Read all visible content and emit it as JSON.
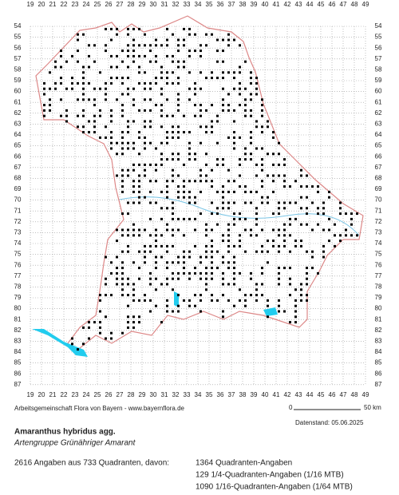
{
  "map": {
    "columns": [
      19,
      20,
      21,
      22,
      23,
      24,
      25,
      26,
      27,
      28,
      29,
      30,
      31,
      32,
      33,
      34,
      35,
      36,
      37,
      38,
      39,
      40,
      41,
      42,
      43,
      44,
      45,
      46,
      47,
      48,
      49
    ],
    "rows": [
      54,
      55,
      56,
      57,
      58,
      59,
      60,
      61,
      62,
      63,
      64,
      65,
      66,
      67,
      68,
      69,
      70,
      71,
      72,
      73,
      74,
      75,
      76,
      77,
      78,
      79,
      80,
      81,
      82,
      83,
      84,
      85,
      86,
      87
    ],
    "credit": "Arbeitsgemeinschaft Flora von Bayern - www.bayernflora.de",
    "scale": {
      "start": "0",
      "end": "50 km"
    }
  },
  "footer": {
    "date": "Datenstand: 05.06.2025",
    "species": "Amaranthus hybridus agg.",
    "common_name": "Artengruppe Grünähriger Amarant",
    "summary": "2616 Angaben aus 733 Quadranten, davon:",
    "breakdown": [
      "1364 Quadranten-Angaben",
      "129 1/4-Quadranten-Angaben (1/16 MTB)",
      "1090 1/16-Quadranten-Angaben (1/64 MTB)"
    ]
  }
}
